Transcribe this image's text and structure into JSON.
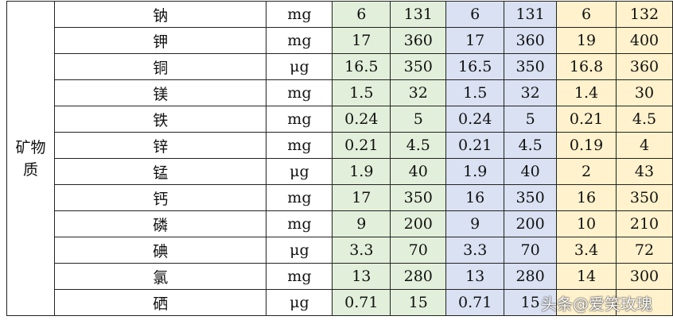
{
  "category": "矿物质",
  "colors": {
    "group1": "#e2efda",
    "group2": "#d9e1f2",
    "group3": "#fff2cc"
  },
  "rows": [
    {
      "name": "钠",
      "unit": "mg",
      "v": [
        "6",
        "131",
        "6",
        "131",
        "6",
        "132"
      ]
    },
    {
      "name": "钾",
      "unit": "mg",
      "v": [
        "17",
        "360",
        "17",
        "360",
        "19",
        "400"
      ]
    },
    {
      "name": "铜",
      "unit": "μg",
      "v": [
        "16.5",
        "350",
        "16.5",
        "350",
        "16.8",
        "360"
      ]
    },
    {
      "name": "镁",
      "unit": "mg",
      "v": [
        "1.5",
        "32",
        "1.5",
        "32",
        "1.4",
        "30"
      ]
    },
    {
      "name": "铁",
      "unit": "mg",
      "v": [
        "0.24",
        "5",
        "0.24",
        "5",
        "0.21",
        "4.5"
      ]
    },
    {
      "name": "锌",
      "unit": "mg",
      "v": [
        "0.21",
        "4.5",
        "0.21",
        "4.5",
        "0.19",
        "4"
      ]
    },
    {
      "name": "锰",
      "unit": "μg",
      "v": [
        "1.9",
        "40",
        "1.9",
        "40",
        "2",
        "43"
      ]
    },
    {
      "name": "钙",
      "unit": "mg",
      "v": [
        "17",
        "350",
        "16",
        "350",
        "16",
        "350"
      ]
    },
    {
      "name": "磷",
      "unit": "mg",
      "v": [
        "9",
        "200",
        "9",
        "200",
        "10",
        "210"
      ]
    },
    {
      "name": "碘",
      "unit": "μg",
      "v": [
        "3.3",
        "70",
        "3.3",
        "70",
        "3.4",
        "72"
      ]
    },
    {
      "name": "氯",
      "unit": "mg",
      "v": [
        "13",
        "280",
        "13",
        "280",
        "14",
        "300"
      ]
    },
    {
      "name": "硒",
      "unit": "μg",
      "v": [
        "0.71",
        "15",
        "0.71",
        "15",
        "",
        ""
      ]
    }
  ],
  "watermark": "头条@爱笑玫瑰"
}
